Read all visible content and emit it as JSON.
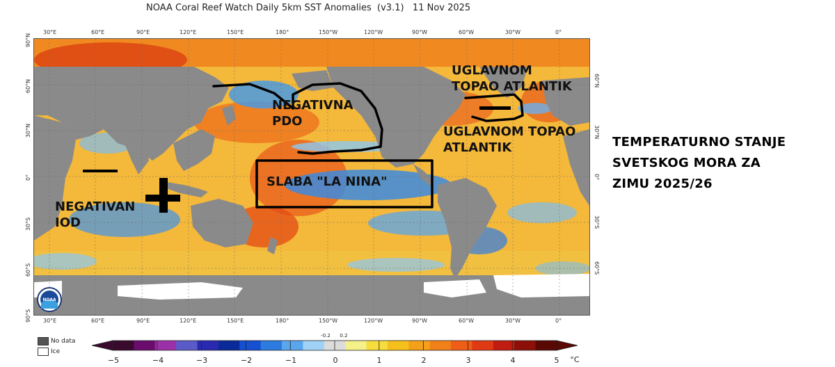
{
  "title": "NOAA Coral Reef Watch Daily 5km SST Anomalies  (v3.1)   11 Nov 2025",
  "lon_ticks": [
    "30°E",
    "60°E",
    "90°E",
    "120°E",
    "150°E",
    "180°",
    "150°W",
    "120°W",
    "90°W",
    "60°W",
    "30°W",
    "0°"
  ],
  "lat_ticks_left": [
    "90°N",
    "60°N",
    "30°N",
    "0°",
    "30°S",
    "60°S",
    "90°S"
  ],
  "lat_ticks_right": [
    "60°N",
    "30°N",
    "0°",
    "30°S",
    "60°S"
  ],
  "annotations": {
    "negativna_pdo": [
      "NEGATIVNA",
      "PDO"
    ],
    "uglavnom_1": [
      "UGLAVNOM",
      "TOPAO ATLANTIK"
    ],
    "uglavnom_2": [
      "UGLAVNOM TOPAO",
      "ATLANTIK"
    ],
    "la_nina": "SLABA \"LA NINA\"",
    "iod": [
      "NEGATIVAN",
      "IOD"
    ]
  },
  "side_note": [
    "TEMPERATURNO STANJE",
    "SVETSKOG MORA ZA",
    "ZIMU 2025/26"
  ],
  "legend": {
    "no_data": "No data",
    "ice": "Ice",
    "no_data_color": "#555555",
    "ice_color": "#ffffff"
  },
  "colorbar": {
    "labels": [
      "−5",
      "−4",
      "−3",
      "−2",
      "−1",
      "0",
      "1",
      "2",
      "3",
      "4",
      "5"
    ],
    "small_labels": [
      "-0.2",
      "0.2"
    ],
    "unit": "°C",
    "colors": [
      "#3a0a2e",
      "#6a0c6e",
      "#9c30a8",
      "#5a5ac8",
      "#2a2ab0",
      "#0a2a9a",
      "#1450d0",
      "#2c7ce0",
      "#5aa6ee",
      "#9fd2f6",
      "#dcdcdc",
      "#f4f08a",
      "#f6dc3c",
      "#f6c01c",
      "#f4a01a",
      "#f28018",
      "#ee5e16",
      "#e03a14",
      "#c01c10",
      "#8c1008",
      "#5a0804"
    ]
  }
}
